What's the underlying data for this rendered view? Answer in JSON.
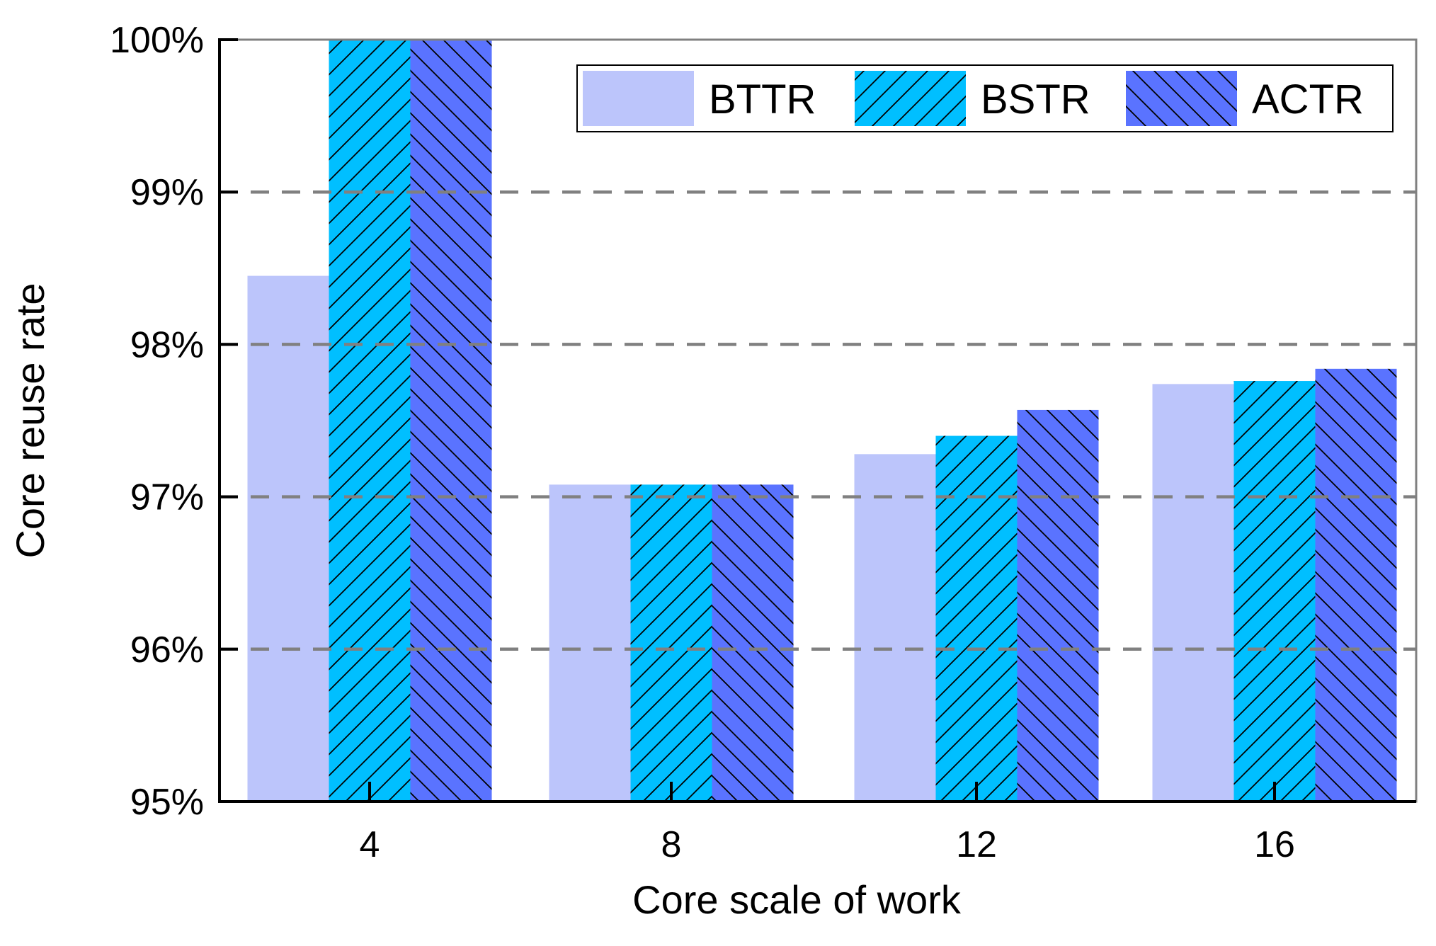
{
  "chart_data": {
    "type": "bar",
    "title": "",
    "xlabel": "Core scale of work",
    "ylabel": "Core reuse rate",
    "categories": [
      "4",
      "8",
      "12",
      "16"
    ],
    "ylim": [
      95,
      100
    ],
    "yticks": [
      95,
      96,
      97,
      98,
      99,
      100
    ],
    "ytick_labels": [
      "95%",
      "96%",
      "97%",
      "98%",
      "99%",
      "100%"
    ],
    "grid": "horizontal dashed",
    "legend_position": "top-right",
    "series": [
      {
        "name": "BTTR",
        "color": "#bcc5fb",
        "pattern": "none",
        "values": [
          98.45,
          97.08,
          97.28,
          97.74
        ]
      },
      {
        "name": "BSTR",
        "color": "#00bfff",
        "pattern": "forward-hatch",
        "values": [
          100.0,
          97.08,
          97.4,
          97.76
        ]
      },
      {
        "name": "ACTR",
        "color": "#5a73ff",
        "pattern": "back-hatch",
        "values": [
          100.0,
          97.08,
          97.57,
          97.84
        ]
      }
    ]
  }
}
